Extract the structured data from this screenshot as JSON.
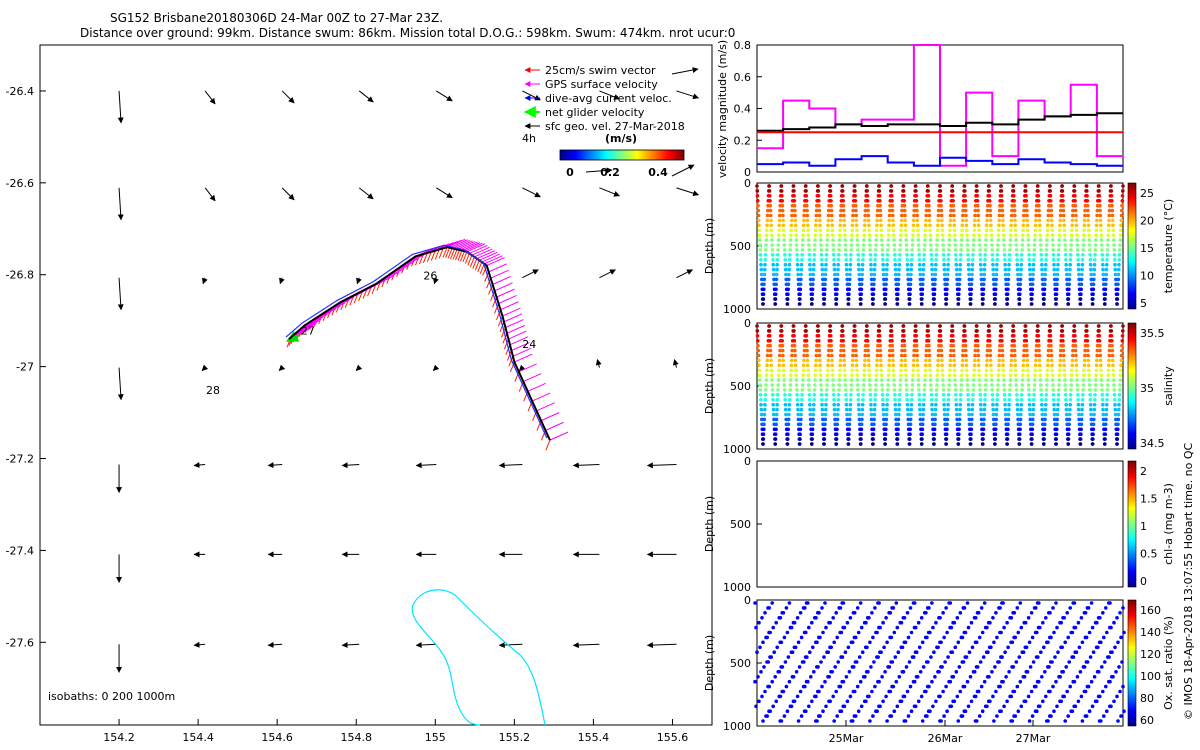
{
  "title": {
    "line1": "SG152 Brisbane20180306D 24-Mar 00Z to 27-Mar 23Z.",
    "line2": "Distance over ground: 99km. Distance swum: 86km. Mission total D.O.G.: 598km. Swum: 474km. nrot ucur:0"
  },
  "footer_note": "© IMOS 18-Apr-2018 13:07:55 Hobart time. no QC",
  "map": {
    "x_ticks": [
      "154.2",
      "154.4",
      "154.6",
      "154.8",
      "155",
      "155.2",
      "155.4",
      "155.6"
    ],
    "y_ticks": [
      "-26.4",
      "-26.6",
      "-26.8",
      "-27",
      "-27.2",
      "-27.4",
      "-27.6"
    ],
    "day_labels": [
      {
        "text": "24",
        "lon": 155.22,
        "lat": -26.96
      },
      {
        "text": "26",
        "lon": 154.97,
        "lat": -26.81
      },
      {
        "text": "27",
        "lon": 154.66,
        "lat": -26.93
      },
      {
        "text": "28",
        "lon": 154.42,
        "lat": -27.06
      }
    ],
    "isobaths_label": "isobaths: 0   200   1000m",
    "legend": [
      {
        "label": "25cm/s swim vector",
        "color": "#ff0000"
      },
      {
        "label": "GPS surface velocity",
        "color": "#ff00ff"
      },
      {
        "label": "dive-avg current veloc.",
        "color": "#0000ff"
      },
      {
        "label": "net glider velocity",
        "color": "#00ff00"
      },
      {
        "label": "sfc geo. vel. 27-Mar-2018",
        "color": "#000000"
      }
    ],
    "legend_extra": "4h",
    "colorbar": {
      "title": "(m/s)",
      "ticks": [
        "0",
        "0.2",
        "0.4"
      ]
    },
    "track_lonlat": [
      [
        155.29,
        -27.16
      ],
      [
        155.2,
        -26.99
      ],
      [
        155.17,
        -26.89
      ],
      [
        155.13,
        -26.78
      ],
      [
        155.08,
        -26.75
      ],
      [
        155.03,
        -26.74
      ],
      [
        154.95,
        -26.76
      ],
      [
        154.85,
        -26.82
      ],
      [
        154.76,
        -26.86
      ],
      [
        154.67,
        -26.91
      ],
      [
        154.63,
        -26.94
      ]
    ]
  },
  "chart_data": [
    {
      "type": "line",
      "title": "",
      "ylabel": "velocity magnitude (m/s)",
      "ylim": [
        0,
        0.8
      ],
      "y_ticks": [
        "0",
        "0.2",
        "0.4",
        "0.6",
        "0.8"
      ],
      "series": [
        {
          "color": "#ff00ff",
          "values": [
            0.15,
            0.45,
            0.4,
            0.3,
            0.33,
            0.33,
            0.8,
            0.04,
            0.5,
            0.1,
            0.45,
            0.35,
            0.55,
            0.1
          ]
        },
        {
          "color": "#000000",
          "values": [
            0.26,
            0.27,
            0.28,
            0.3,
            0.29,
            0.3,
            0.3,
            0.29,
            0.31,
            0.3,
            0.33,
            0.35,
            0.36,
            0.37
          ]
        },
        {
          "color": "#ff0000",
          "values": [
            0.25,
            0.25,
            0.25,
            0.25,
            0.25,
            0.25,
            0.25,
            0.25,
            0.25,
            0.25,
            0.25,
            0.25,
            0.25,
            0.25
          ]
        },
        {
          "color": "#0000ff",
          "values": [
            0.05,
            0.06,
            0.04,
            0.08,
            0.1,
            0.06,
            0.04,
            0.09,
            0.07,
            0.05,
            0.08,
            0.06,
            0.05,
            0.04
          ]
        }
      ]
    },
    {
      "type": "scatter",
      "ylabel": "Depth (m)",
      "ylim": [
        1000,
        0
      ],
      "y_ticks": [
        "0",
        "500",
        "1000"
      ],
      "colorbar_label": "temperature (°C)",
      "colorbar_ticks": [
        "5",
        "10",
        "15",
        "20",
        "25"
      ],
      "colormap": "jet"
    },
    {
      "type": "scatter",
      "ylabel": "Depth (m)",
      "ylim": [
        1000,
        0
      ],
      "y_ticks": [
        "0",
        "500",
        "1000"
      ],
      "colorbar_label": "salinity",
      "colorbar_ticks": [
        "34.5",
        "35",
        "35.5"
      ],
      "colormap": "jet"
    },
    {
      "type": "scatter",
      "ylabel": "Depth (m)",
      "ylim": [
        1000,
        0
      ],
      "y_ticks": [
        "0",
        "500",
        "1000"
      ],
      "colorbar_label": "chl-a (mg m-3)",
      "colorbar_ticks": [
        "0",
        "0.5",
        "1",
        "1.5",
        "2"
      ],
      "colormap": "jet"
    },
    {
      "type": "scatter",
      "ylabel": "Depth (m)",
      "ylim": [
        1000,
        0
      ],
      "y_ticks": [
        "0",
        "500",
        "1000"
      ],
      "colorbar_label": "Ox. sat. ratio (%)",
      "colorbar_ticks": [
        "60",
        "80",
        "100",
        "120",
        "140",
        "160"
      ],
      "colormap": "jet",
      "x_ticks": [
        "25Mar",
        "26Mar",
        "27Mar"
      ]
    }
  ]
}
